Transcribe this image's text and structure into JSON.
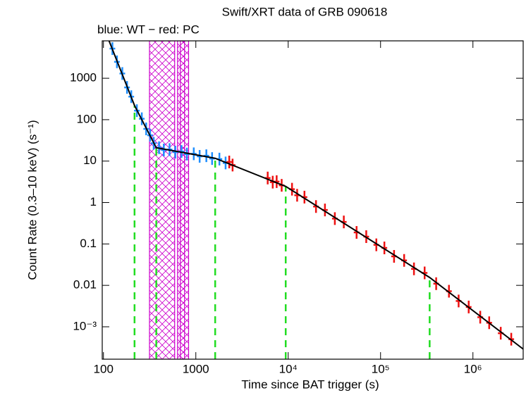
{
  "chart_data": {
    "type": "scatter",
    "title": "Swift/XRT data of GRB 090618",
    "subtitle": "blue: WT − red: PC",
    "x_label": "Time since BAT trigger (s)",
    "y_label": "Count Rate (0.3–10 keV) (s⁻¹)",
    "xscale": "log",
    "yscale": "log",
    "xlim": [
      97,
      3500000
    ],
    "ylim": [
      0.000165,
      8000
    ],
    "xticks": [
      100,
      1000,
      {
        "value": 10000,
        "label": "10⁴"
      },
      {
        "value": 100000,
        "label": "10⁵"
      },
      {
        "value": 1000000,
        "label": "10⁶"
      }
    ],
    "yticks": [
      1000,
      100,
      10,
      1,
      0.1,
      0.01,
      {
        "value": 0.001,
        "label": "10⁻³"
      }
    ],
    "series": [
      {
        "name": "WT",
        "color": "#1f8fff",
        "x": [
          125,
          140,
          160,
          180,
          200,
          230,
          260,
          290,
          320,
          350,
          400,
          450,
          520,
          600,
          700,
          800,
          950,
          1100,
          1300,
          1500,
          1800,
          2100
        ],
        "values": [
          5200,
          2500,
          1300,
          600,
          360,
          165,
          105,
          60,
          42,
          27,
          21,
          18.5,
          19,
          16.5,
          17,
          14.8,
          15,
          13,
          13.5,
          11.5,
          11.2,
          9.0
        ]
      },
      {
        "name": "PC",
        "color": "#ee1111",
        "x": [
          2300,
          2500,
          6000,
          6800,
          7500,
          8500,
          11000,
          12500,
          15000,
          20000,
          25000,
          32000,
          40000,
          55000,
          70000,
          90000,
          110000,
          140000,
          180000,
          230000,
          300000,
          400000,
          550000,
          700000,
          900000,
          1200000,
          1500000,
          2000000,
          2600000
        ],
        "values": [
          9.5,
          8,
          3.9,
          3.1,
          3.2,
          2.6,
          2.1,
          1.5,
          1.35,
          0.8,
          0.66,
          0.41,
          0.34,
          0.19,
          0.15,
          0.095,
          0.08,
          0.05,
          0.04,
          0.025,
          0.02,
          0.011,
          0.0072,
          0.0042,
          0.003,
          0.0017,
          0.00125,
          0.0007,
          0.0005
        ]
      }
    ],
    "fit": {
      "color": "#000000",
      "x": [
        115,
        217,
        373,
        1620,
        9400,
        340000,
        3500000
      ],
      "values": [
        8000,
        220,
        21,
        11.7,
        2.45,
        0.0155,
        0.00029
      ]
    },
    "breaks": {
      "color": "#22dd22",
      "x": [
        217,
        373,
        1620,
        9400,
        340000
      ]
    },
    "hatched_intervals": {
      "color": "#cc00cc",
      "x": [
        [
          315,
          590
        ],
        [
          634,
          755
        ],
        [
          680,
          835
        ]
      ]
    }
  }
}
